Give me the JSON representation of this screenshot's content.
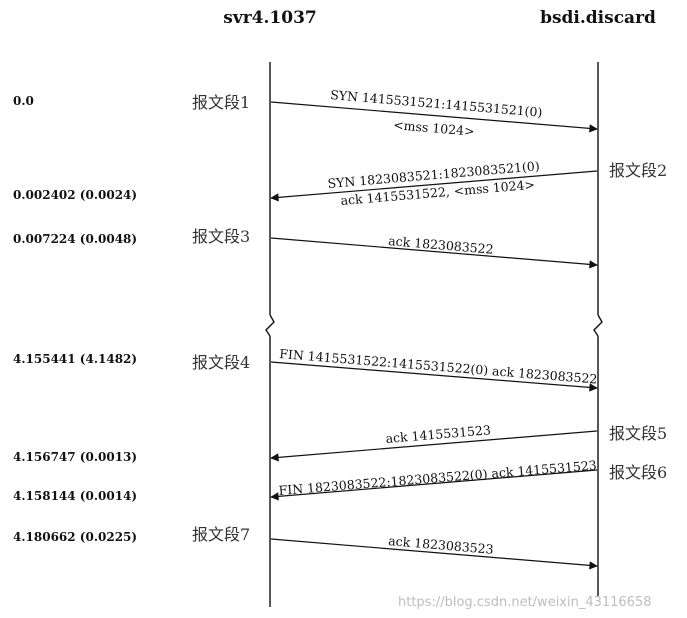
{
  "hosts": {
    "left": "svr4.1037",
    "right": "bsdi.discard"
  },
  "times": [
    "0.0",
    "0.002402 (0.0024)",
    "0.007224 (0.0048)",
    "4.155441 (4.1482)",
    "4.156747 (0.0013)",
    "4.158144 (0.0014)",
    "4.180662 (0.0225)"
  ],
  "segments": [
    {
      "label": "报文段1",
      "side": "left",
      "line1": "SYN  1415531521:1415531521(0)",
      "line2": "<mss 1024>"
    },
    {
      "label": "报文段2",
      "side": "right",
      "line1": "SYN  1823083521:1823083521(0)",
      "line2": "ack 1415531522, <mss 1024>"
    },
    {
      "label": "报文段3",
      "side": "left",
      "line1": "ack 1823083522",
      "line2": ""
    },
    {
      "label": "报文段4",
      "side": "left",
      "line1": "FIN  1415531522:1415531522(0) ack 1823083522",
      "line2": ""
    },
    {
      "label": "报文段5",
      "side": "right",
      "line1": "ack 1415531523",
      "line2": ""
    },
    {
      "label": "报文段6",
      "side": "right",
      "line1": "FIN  1823083522:1823083522(0) ack 1415531523",
      "line2": ""
    },
    {
      "label": "报文段7",
      "side": "left",
      "line1": "ack 1823083523",
      "line2": ""
    }
  ],
  "watermark": "https://blog.csdn.net/weixin_43116658"
}
